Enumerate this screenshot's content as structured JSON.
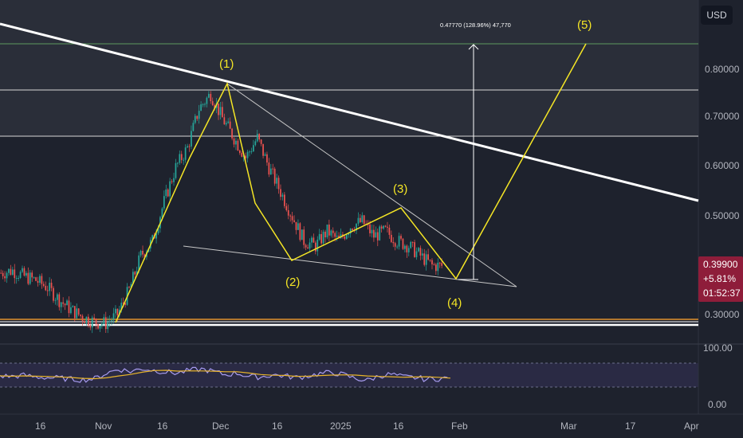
{
  "currency_button": "USD",
  "colors": {
    "background": "#1e222d",
    "wave": "#f5e625",
    "trendline": "#ffffff",
    "green_line": "#5f9b5f",
    "orange_line": "#e0922f",
    "rsi_line": "#a89cf0",
    "rsi_ma": "#e8b42a",
    "price_badge": "#8e1d3a",
    "candle_up": "#26a69a",
    "candle_down": "#ef5350"
  },
  "price_badge": {
    "price": "0.39900",
    "change": "+5.81%",
    "countdown": "01:52:37"
  },
  "measure_label": "0.47770 (128.96%) 47,770",
  "chart_data": {
    "type": "line",
    "y_axis_ticks": [
      "0.80000",
      "0.70000",
      "0.60000",
      "0.50000",
      "0.30000"
    ],
    "x_axis_ticks": [
      "16",
      "Nov",
      "16",
      "Dec",
      "16",
      "2025",
      "16",
      "Feb",
      "Mar",
      "17",
      "Apr"
    ],
    "rsi_ticks": [
      "100.00",
      "0.00"
    ],
    "elliott_wave": {
      "labels": [
        "(1)",
        "(2)",
        "(3)",
        "(4)",
        "(5)"
      ],
      "points": [
        {
          "date": "2024-11-03",
          "price": 0.281
        },
        {
          "date": "2024-11-20",
          "price": 0.605
        },
        {
          "date": "2024-12-01",
          "price": 0.768
        },
        {
          "date": "2024-12-08",
          "price": 0.585
        },
        {
          "date": "2024-12-19",
          "price": 0.425
        },
        {
          "date": "2025-01-17",
          "price": 0.512
        },
        {
          "date": "2025-01-30",
          "price": 0.383
        },
        {
          "date": "2025-03-04",
          "price": 0.846
        }
      ]
    },
    "horizontal_levels": [
      0.846,
      0.755,
      0.665,
      0.283,
      0.277,
      0.275
    ],
    "price_history": [
      0.385,
      0.39,
      0.378,
      0.37,
      0.355,
      0.33,
      0.31,
      0.295,
      0.285,
      0.282,
      0.3,
      0.35,
      0.42,
      0.45,
      0.53,
      0.6,
      0.64,
      0.72,
      0.75,
      0.7,
      0.66,
      0.62,
      0.66,
      0.6,
      0.55,
      0.5,
      0.45,
      0.44,
      0.47,
      0.45,
      0.48,
      0.49,
      0.46,
      0.47,
      0.45,
      0.44,
      0.42,
      0.4,
      0.399
    ],
    "rsi_values": [
      50,
      49,
      51,
      48,
      47,
      46,
      44,
      43,
      45,
      55,
      62,
      58,
      63,
      60,
      57,
      55,
      60,
      62,
      58,
      52,
      55,
      49,
      48,
      52,
      50,
      47,
      50,
      54,
      56,
      52,
      45,
      42,
      50,
      53,
      48,
      47,
      44,
      45,
      46
    ]
  }
}
